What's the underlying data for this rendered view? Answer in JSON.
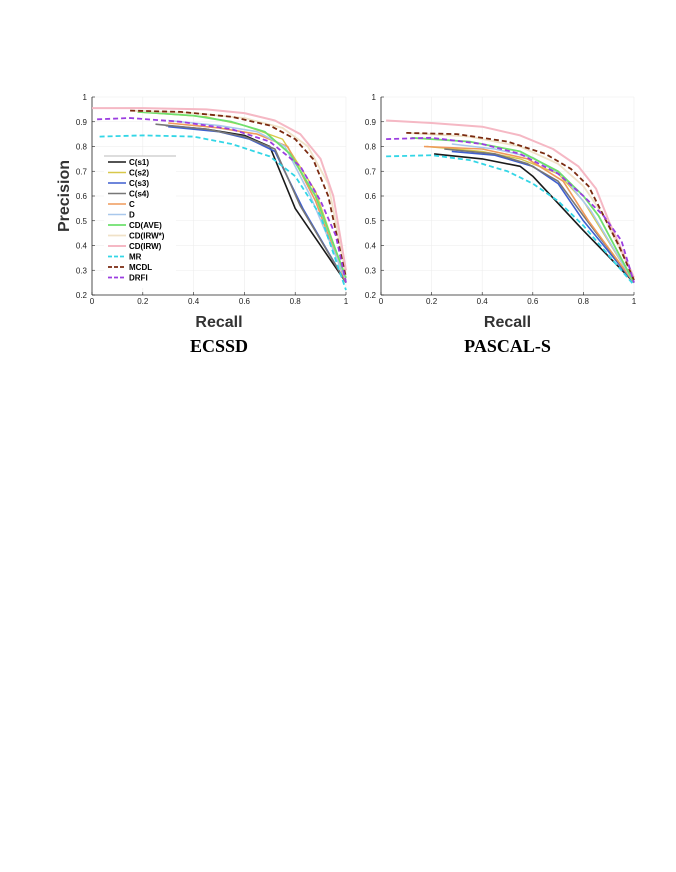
{
  "chart_data": [
    {
      "type": "line",
      "title": "ECSSD",
      "xlabel": "Recall",
      "ylabel": "Precision",
      "xlim": [
        0,
        1
      ],
      "ylim": [
        0.2,
        1
      ],
      "xticks": [
        "0",
        "0.2",
        "0.4",
        "0.6",
        "0.8",
        "1"
      ],
      "yticks": [
        "0.2",
        "0.3",
        "0.4",
        "0.5",
        "0.6",
        "0.7",
        "0.8",
        "0.9",
        "1"
      ],
      "grid": true,
      "legend_position": "lower-left",
      "series": [
        {
          "name": "C(s1)",
          "color": "#1a1a1a",
          "dash": false,
          "width": 1.6,
          "x": [
            0.29,
            0.45,
            0.6,
            0.7,
            0.8,
            1.0
          ],
          "y": [
            0.885,
            0.87,
            0.845,
            0.8,
            0.55,
            0.25
          ]
        },
        {
          "name": "C(s2)",
          "color": "#d8c84a",
          "dash": false,
          "width": 1.4,
          "x": [
            0.18,
            0.45,
            0.6,
            0.75,
            0.88,
            1.0
          ],
          "y": [
            0.94,
            0.92,
            0.885,
            0.83,
            0.62,
            0.26
          ]
        },
        {
          "name": "C(s3)",
          "color": "#3f5fcf",
          "dash": false,
          "width": 1.6,
          "x": [
            0.3,
            0.5,
            0.62,
            0.72,
            0.83,
            1.0
          ],
          "y": [
            0.88,
            0.86,
            0.83,
            0.78,
            0.55,
            0.25
          ]
        },
        {
          "name": "C(s4)",
          "color": "#777777",
          "dash": false,
          "width": 1.6,
          "x": [
            0.25,
            0.45,
            0.6,
            0.72,
            0.82,
            1.0
          ],
          "y": [
            0.89,
            0.87,
            0.84,
            0.79,
            0.56,
            0.25
          ]
        },
        {
          "name": "C",
          "color": "#ef9a5a",
          "dash": false,
          "width": 1.6,
          "x": [
            0.3,
            0.5,
            0.65,
            0.77,
            0.88,
            1.0
          ],
          "y": [
            0.895,
            0.875,
            0.85,
            0.8,
            0.58,
            0.25
          ]
        },
        {
          "name": "D",
          "color": "#a9c8ec",
          "dash": false,
          "width": 1.6,
          "x": [
            0.3,
            0.5,
            0.65,
            0.76,
            0.86,
            1.0
          ],
          "y": [
            0.905,
            0.885,
            0.86,
            0.8,
            0.6,
            0.26
          ]
        },
        {
          "name": "CD(AVE)",
          "color": "#6ee06e",
          "dash": false,
          "width": 1.8,
          "x": [
            0.18,
            0.4,
            0.55,
            0.68,
            0.78,
            0.88,
            1.0
          ],
          "y": [
            0.94,
            0.925,
            0.9,
            0.86,
            0.77,
            0.6,
            0.27
          ]
        },
        {
          "name": "CD(IRW*)",
          "color": "#f0e2c8",
          "dash": false,
          "width": 1.8,
          "x": [
            0.15,
            0.4,
            0.6,
            0.75,
            0.85,
            0.93,
            1.0
          ],
          "y": [
            0.945,
            0.935,
            0.915,
            0.875,
            0.8,
            0.65,
            0.28
          ]
        },
        {
          "name": "CD(IRW)",
          "color": "#f5b8c4",
          "dash": false,
          "width": 2.0,
          "x": [
            0.0,
            0.2,
            0.45,
            0.6,
            0.72,
            0.82,
            0.9,
            0.95,
            1.0
          ],
          "y": [
            0.955,
            0.955,
            0.95,
            0.935,
            0.905,
            0.85,
            0.75,
            0.6,
            0.3
          ]
        },
        {
          "name": "MR",
          "color": "#33d6e6",
          "dash": true,
          "width": 1.8,
          "x": [
            0.03,
            0.2,
            0.4,
            0.55,
            0.7,
            0.8,
            0.9,
            1.0
          ],
          "y": [
            0.84,
            0.845,
            0.84,
            0.81,
            0.76,
            0.68,
            0.52,
            0.22
          ]
        },
        {
          "name": "MCDL",
          "color": "#7a2a10",
          "dash": true,
          "width": 1.8,
          "x": [
            0.15,
            0.35,
            0.55,
            0.7,
            0.8,
            0.87,
            0.93,
            1.0
          ],
          "y": [
            0.945,
            0.94,
            0.92,
            0.885,
            0.83,
            0.75,
            0.6,
            0.27
          ]
        },
        {
          "name": "DRFI",
          "color": "#9b3ee0",
          "dash": true,
          "width": 1.8,
          "x": [
            0.02,
            0.15,
            0.35,
            0.55,
            0.7,
            0.82,
            0.9,
            0.96,
            1.0
          ],
          "y": [
            0.91,
            0.915,
            0.9,
            0.87,
            0.82,
            0.72,
            0.58,
            0.44,
            0.25
          ]
        }
      ]
    },
    {
      "type": "line",
      "title": "PASCAL-S",
      "xlabel": "Recall",
      "ylabel": "",
      "xlim": [
        0,
        1
      ],
      "ylim": [
        0.2,
        1
      ],
      "xticks": [
        "0",
        "0.2",
        "0.4",
        "0.6",
        "0.8",
        "1"
      ],
      "yticks": [
        "0.2",
        "0.3",
        "0.4",
        "0.5",
        "0.6",
        "0.7",
        "0.8",
        "0.9",
        "1"
      ],
      "grid": true,
      "series": [
        {
          "name": "C(s1)",
          "color": "#1a1a1a",
          "dash": false,
          "width": 1.6,
          "x": [
            0.21,
            0.4,
            0.55,
            0.6,
            0.8,
            1.0
          ],
          "y": [
            0.77,
            0.75,
            0.72,
            0.68,
            0.46,
            0.25
          ]
        },
        {
          "name": "C(s2)",
          "color": "#d8c84a",
          "dash": false,
          "width": 1.4,
          "x": [
            0.18,
            0.4,
            0.55,
            0.7,
            0.8,
            1.0
          ],
          "y": [
            0.8,
            0.78,
            0.75,
            0.69,
            0.58,
            0.25
          ]
        },
        {
          "name": "C(s3)",
          "color": "#3f5fcf",
          "dash": false,
          "width": 1.6,
          "x": [
            0.28,
            0.45,
            0.6,
            0.7,
            0.8,
            1.0
          ],
          "y": [
            0.78,
            0.765,
            0.72,
            0.65,
            0.5,
            0.25
          ]
        },
        {
          "name": "C(s4)",
          "color": "#777777",
          "dash": false,
          "width": 1.6,
          "x": [
            0.25,
            0.45,
            0.58,
            0.7,
            0.8,
            1.0
          ],
          "y": [
            0.79,
            0.77,
            0.73,
            0.66,
            0.52,
            0.25
          ]
        },
        {
          "name": "C",
          "color": "#ef9a5a",
          "dash": false,
          "width": 1.6,
          "x": [
            0.17,
            0.4,
            0.58,
            0.72,
            0.82,
            1.0
          ],
          "y": [
            0.8,
            0.79,
            0.75,
            0.66,
            0.5,
            0.25
          ]
        },
        {
          "name": "D",
          "color": "#a9c8ec",
          "dash": false,
          "width": 1.6,
          "x": [
            0.28,
            0.45,
            0.6,
            0.72,
            0.83,
            1.0
          ],
          "y": [
            0.81,
            0.79,
            0.755,
            0.68,
            0.54,
            0.25
          ]
        },
        {
          "name": "CD(AVE)",
          "color": "#6ee06e",
          "dash": false,
          "width": 1.8,
          "x": [
            0.12,
            0.35,
            0.55,
            0.7,
            0.8,
            0.86,
            1.0
          ],
          "y": [
            0.835,
            0.82,
            0.78,
            0.7,
            0.6,
            0.52,
            0.25
          ]
        },
        {
          "name": "CD(IRW*)",
          "color": "#f0e2c8",
          "dash": false,
          "width": 1.8,
          "x": [
            0.1,
            0.35,
            0.55,
            0.7,
            0.8,
            0.88,
            1.0
          ],
          "y": [
            0.855,
            0.84,
            0.8,
            0.73,
            0.64,
            0.52,
            0.27
          ]
        },
        {
          "name": "CD(IRW)",
          "color": "#f5b8c4",
          "dash": false,
          "width": 2.0,
          "x": [
            0.02,
            0.2,
            0.4,
            0.55,
            0.68,
            0.78,
            0.85,
            0.9,
            1.0
          ],
          "y": [
            0.905,
            0.895,
            0.88,
            0.845,
            0.79,
            0.72,
            0.63,
            0.5,
            0.27
          ]
        },
        {
          "name": "MR",
          "color": "#33d6e6",
          "dash": true,
          "width": 1.8,
          "x": [
            0.02,
            0.2,
            0.35,
            0.5,
            0.6,
            0.7,
            0.8,
            0.9,
            1.0
          ],
          "y": [
            0.76,
            0.765,
            0.745,
            0.7,
            0.65,
            0.58,
            0.48,
            0.36,
            0.24
          ]
        },
        {
          "name": "MCDL",
          "color": "#7a2a10",
          "dash": true,
          "width": 1.8,
          "x": [
            0.1,
            0.3,
            0.5,
            0.65,
            0.75,
            0.82,
            0.88,
            0.94,
            1.0
          ],
          "y": [
            0.855,
            0.85,
            0.82,
            0.77,
            0.71,
            0.64,
            0.52,
            0.4,
            0.26
          ]
        },
        {
          "name": "DRFI",
          "color": "#9b3ee0",
          "dash": true,
          "width": 1.8,
          "x": [
            0.02,
            0.2,
            0.4,
            0.55,
            0.7,
            0.8,
            0.88,
            0.95,
            1.0
          ],
          "y": [
            0.83,
            0.835,
            0.81,
            0.77,
            0.69,
            0.6,
            0.52,
            0.42,
            0.25
          ]
        }
      ]
    }
  ]
}
